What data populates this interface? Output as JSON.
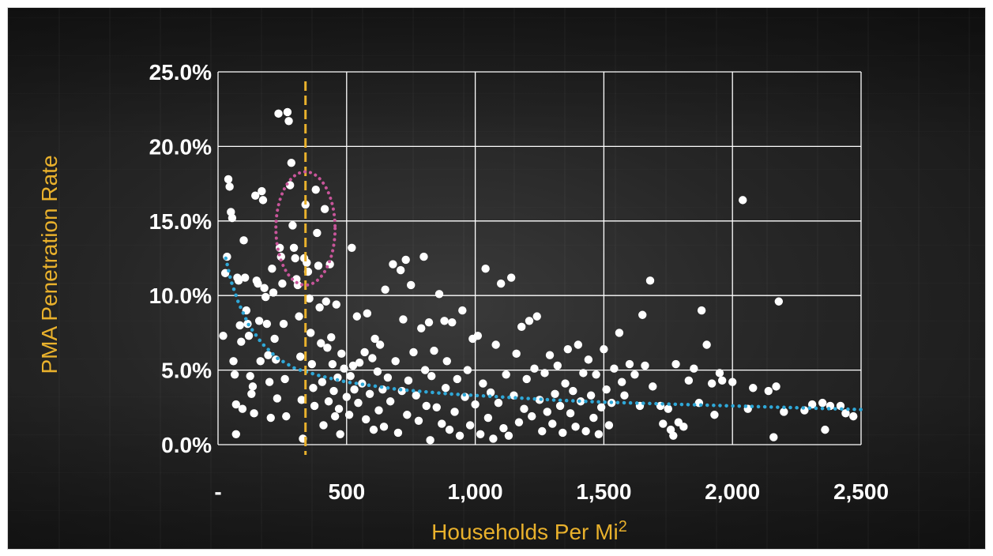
{
  "chart_data": {
    "type": "scatter",
    "title": "",
    "xlabel": "Households Per Mi",
    "xlabel_superscript": "2",
    "ylabel": "PMA Penetration Rate",
    "xlim": [
      0,
      2500
    ],
    "ylim": [
      0,
      25
    ],
    "x_ticks": [
      0,
      500,
      1000,
      1500,
      2000,
      2500
    ],
    "x_tick_labels": [
      "-",
      "500",
      "1,000",
      "1,500",
      "2,000",
      "2,500"
    ],
    "y_ticks": [
      0,
      5,
      10,
      15,
      20,
      25
    ],
    "y_tick_labels": [
      "0.0%",
      "5.0%",
      "10.0%",
      "15.0%",
      "20.0%",
      "25.0%"
    ],
    "grid": true,
    "reference_line": {
      "type": "vertical",
      "x": 340,
      "color": "#e9b12c",
      "style": "dashed"
    },
    "highlight_ellipse": {
      "cx": 340,
      "cy": 14.5,
      "rx": 115,
      "ry": 3.8,
      "color": "#c8559a",
      "style": "dotted"
    },
    "trendline": {
      "color": "#2fa8d8",
      "style": "dotted",
      "points": [
        [
          30,
          12.5
        ],
        [
          50,
          11.0
        ],
        [
          80,
          9.5
        ],
        [
          120,
          8.0
        ],
        [
          170,
          6.8
        ],
        [
          230,
          5.8
        ],
        [
          300,
          5.1
        ],
        [
          400,
          4.6
        ],
        [
          500,
          4.2
        ],
        [
          700,
          3.7
        ],
        [
          900,
          3.4
        ],
        [
          1100,
          3.2
        ],
        [
          1300,
          3.0
        ],
        [
          1500,
          2.85
        ],
        [
          1700,
          2.75
        ],
        [
          1900,
          2.65
        ],
        [
          2100,
          2.55
        ],
        [
          2300,
          2.45
        ],
        [
          2500,
          2.35
        ]
      ]
    },
    "colors": {
      "points": "#ffffff",
      "grid": "#ffffff",
      "axis_title": "#e9b12c",
      "tick_labels": "#ffffff"
    },
    "series": [
      {
        "values": [
          [
            20,
            7.3
          ],
          [
            28,
            11.5
          ],
          [
            35,
            12.6
          ],
          [
            40,
            17.8
          ],
          [
            45,
            17.3
          ],
          [
            50,
            15.6
          ],
          [
            55,
            15.2
          ],
          [
            60,
            5.6
          ],
          [
            65,
            4.7
          ],
          [
            70,
            2.7
          ],
          [
            70,
            0.7
          ],
          [
            75,
            11.2
          ],
          [
            80,
            11.0
          ],
          [
            85,
            8.0
          ],
          [
            90,
            6.9
          ],
          [
            95,
            2.4
          ],
          [
            100,
            13.7
          ],
          [
            105,
            11.2
          ],
          [
            110,
            9.0
          ],
          [
            115,
            8.1
          ],
          [
            120,
            7.3
          ],
          [
            125,
            4.6
          ],
          [
            130,
            3.4
          ],
          [
            135,
            3.9
          ],
          [
            140,
            2.1
          ],
          [
            145,
            16.7
          ],
          [
            150,
            11.0
          ],
          [
            155,
            10.8
          ],
          [
            160,
            8.3
          ],
          [
            165,
            5.6
          ],
          [
            170,
            17.0
          ],
          [
            175,
            16.4
          ],
          [
            180,
            10.5
          ],
          [
            185,
            9.9
          ],
          [
            190,
            8.1
          ],
          [
            195,
            6.0
          ],
          [
            200,
            4.2
          ],
          [
            205,
            1.8
          ],
          [
            210,
            11.8
          ],
          [
            215,
            10.2
          ],
          [
            220,
            7.1
          ],
          [
            225,
            5.7
          ],
          [
            230,
            3.1
          ],
          [
            235,
            22.2
          ],
          [
            240,
            13.2
          ],
          [
            245,
            12.6
          ],
          [
            250,
            10.8
          ],
          [
            255,
            8.1
          ],
          [
            260,
            4.4
          ],
          [
            265,
            1.9
          ],
          [
            270,
            22.3
          ],
          [
            275,
            21.7
          ],
          [
            280,
            17.4
          ],
          [
            285,
            18.9
          ],
          [
            290,
            14.7
          ],
          [
            295,
            13.2
          ],
          [
            300,
            12.5
          ],
          [
            305,
            11.1
          ],
          [
            310,
            10.7
          ],
          [
            315,
            8.6
          ],
          [
            320,
            5.9
          ],
          [
            325,
            3.0
          ],
          [
            330,
            0.4
          ],
          [
            335,
            12.5
          ],
          [
            340,
            16.1
          ],
          [
            345,
            12.2
          ],
          [
            350,
            11.6
          ],
          [
            355,
            9.8
          ],
          [
            360,
            7.5
          ],
          [
            365,
            5.4
          ],
          [
            370,
            3.8
          ],
          [
            375,
            2.6
          ],
          [
            380,
            17.1
          ],
          [
            385,
            14.2
          ],
          [
            390,
            12.0
          ],
          [
            395,
            9.2
          ],
          [
            400,
            6.8
          ],
          [
            405,
            4.2
          ],
          [
            410,
            1.3
          ],
          [
            415,
            15.8
          ],
          [
            420,
            9.6
          ],
          [
            425,
            6.5
          ],
          [
            430,
            2.9
          ],
          [
            435,
            12.1
          ],
          [
            440,
            7.2
          ],
          [
            445,
            5.4
          ],
          [
            450,
            3.6
          ],
          [
            455,
            1.9
          ],
          [
            460,
            9.4
          ],
          [
            465,
            4.5
          ],
          [
            470,
            2.4
          ],
          [
            475,
            0.7
          ],
          [
            480,
            6.1
          ],
          [
            490,
            5.1
          ],
          [
            500,
            3.2
          ],
          [
            510,
            2.0
          ],
          [
            515,
            4.6
          ],
          [
            520,
            13.2
          ],
          [
            525,
            5.3
          ],
          [
            530,
            3.7
          ],
          [
            540,
            8.6
          ],
          [
            545,
            2.8
          ],
          [
            550,
            5.5
          ],
          [
            560,
            4.1
          ],
          [
            570,
            6.2
          ],
          [
            575,
            1.7
          ],
          [
            580,
            8.8
          ],
          [
            590,
            3.4
          ],
          [
            600,
            5.8
          ],
          [
            605,
            1.0
          ],
          [
            610,
            7.1
          ],
          [
            620,
            4.9
          ],
          [
            625,
            2.3
          ],
          [
            630,
            6.7
          ],
          [
            640,
            3.7
          ],
          [
            645,
            1.2
          ],
          [
            650,
            10.4
          ],
          [
            660,
            4.5
          ],
          [
            670,
            2.9
          ],
          [
            680,
            12.1
          ],
          [
            690,
            5.6
          ],
          [
            700,
            0.8
          ],
          [
            710,
            11.7
          ],
          [
            715,
            3.6
          ],
          [
            720,
            8.4
          ],
          [
            730,
            12.4
          ],
          [
            735,
            2.0
          ],
          [
            740,
            4.3
          ],
          [
            750,
            10.7
          ],
          [
            760,
            6.2
          ],
          [
            770,
            3.3
          ],
          [
            780,
            1.6
          ],
          [
            790,
            7.8
          ],
          [
            800,
            12.6
          ],
          [
            805,
            5.0
          ],
          [
            810,
            2.6
          ],
          [
            820,
            8.2
          ],
          [
            825,
            0.3
          ],
          [
            830,
            4.6
          ],
          [
            840,
            6.3
          ],
          [
            850,
            2.5
          ],
          [
            860,
            10.1
          ],
          [
            870,
            1.4
          ],
          [
            880,
            8.3
          ],
          [
            885,
            3.8
          ],
          [
            890,
            5.6
          ],
          [
            900,
            1.0
          ],
          [
            910,
            8.2
          ],
          [
            920,
            2.2
          ],
          [
            930,
            4.4
          ],
          [
            940,
            0.6
          ],
          [
            950,
            9.0
          ],
          [
            960,
            3.2
          ],
          [
            970,
            5.0
          ],
          [
            980,
            1.3
          ],
          [
            990,
            7.1
          ],
          [
            1000,
            2.7
          ],
          [
            1010,
            7.3
          ],
          [
            1020,
            0.7
          ],
          [
            1030,
            4.1
          ],
          [
            1040,
            11.8
          ],
          [
            1050,
            1.8
          ],
          [
            1060,
            3.5
          ],
          [
            1070,
            0.4
          ],
          [
            1080,
            6.7
          ],
          [
            1090,
            2.8
          ],
          [
            1100,
            10.8
          ],
          [
            1110,
            1.1
          ],
          [
            1120,
            4.7
          ],
          [
            1130,
            0.6
          ],
          [
            1140,
            11.2
          ],
          [
            1150,
            3.3
          ],
          [
            1160,
            6.1
          ],
          [
            1170,
            1.5
          ],
          [
            1180,
            7.9
          ],
          [
            1190,
            2.4
          ],
          [
            1200,
            4.4
          ],
          [
            1210,
            8.3
          ],
          [
            1220,
            1.9
          ],
          [
            1230,
            5.1
          ],
          [
            1240,
            8.6
          ],
          [
            1250,
            3.0
          ],
          [
            1260,
            0.9
          ],
          [
            1270,
            4.8
          ],
          [
            1280,
            2.2
          ],
          [
            1290,
            6.0
          ],
          [
            1300,
            1.4
          ],
          [
            1310,
            3.4
          ],
          [
            1320,
            5.3
          ],
          [
            1330,
            2.6
          ],
          [
            1340,
            0.8
          ],
          [
            1350,
            4.1
          ],
          [
            1360,
            6.4
          ],
          [
            1370,
            2.1
          ],
          [
            1380,
            3.6
          ],
          [
            1390,
            1.2
          ],
          [
            1400,
            6.7
          ],
          [
            1410,
            2.9
          ],
          [
            1420,
            4.8
          ],
          [
            1430,
            0.9
          ],
          [
            1440,
            5.7
          ],
          [
            1450,
            3.3
          ],
          [
            1460,
            1.8
          ],
          [
            1470,
            4.7
          ],
          [
            1480,
            0.7
          ],
          [
            1490,
            2.5
          ],
          [
            1500,
            6.4
          ],
          [
            1510,
            3.7
          ],
          [
            1520,
            1.3
          ],
          [
            1530,
            2.8
          ],
          [
            1540,
            5.1
          ],
          [
            1560,
            7.5
          ],
          [
            1570,
            4.2
          ],
          [
            1580,
            3.3
          ],
          [
            1600,
            5.4
          ],
          [
            1620,
            4.7
          ],
          [
            1640,
            2.6
          ],
          [
            1650,
            8.7
          ],
          [
            1660,
            5.3
          ],
          [
            1680,
            11.0
          ],
          [
            1690,
            3.9
          ],
          [
            1720,
            2.6
          ],
          [
            1730,
            1.4
          ],
          [
            1750,
            2.4
          ],
          [
            1760,
            1.0
          ],
          [
            1770,
            0.6
          ],
          [
            1780,
            5.4
          ],
          [
            1790,
            1.5
          ],
          [
            1810,
            1.2
          ],
          [
            1830,
            4.3
          ],
          [
            1850,
            5.1
          ],
          [
            1870,
            2.8
          ],
          [
            1880,
            9.0
          ],
          [
            1900,
            6.7
          ],
          [
            1920,
            4.1
          ],
          [
            1930,
            2.0
          ],
          [
            1950,
            4.8
          ],
          [
            1960,
            4.3
          ],
          [
            2000,
            4.2
          ],
          [
            2040,
            16.4
          ],
          [
            2060,
            2.4
          ],
          [
            2080,
            3.8
          ],
          [
            2140,
            3.6
          ],
          [
            2160,
            0.5
          ],
          [
            2170,
            3.9
          ],
          [
            2180,
            9.6
          ],
          [
            2200,
            2.2
          ],
          [
            2280,
            2.3
          ],
          [
            2310,
            2.7
          ],
          [
            2350,
            2.8
          ],
          [
            2360,
            1.0
          ],
          [
            2380,
            2.6
          ],
          [
            2420,
            2.6
          ],
          [
            2440,
            2.1
          ],
          [
            2470,
            1.9
          ]
        ]
      }
    ]
  }
}
